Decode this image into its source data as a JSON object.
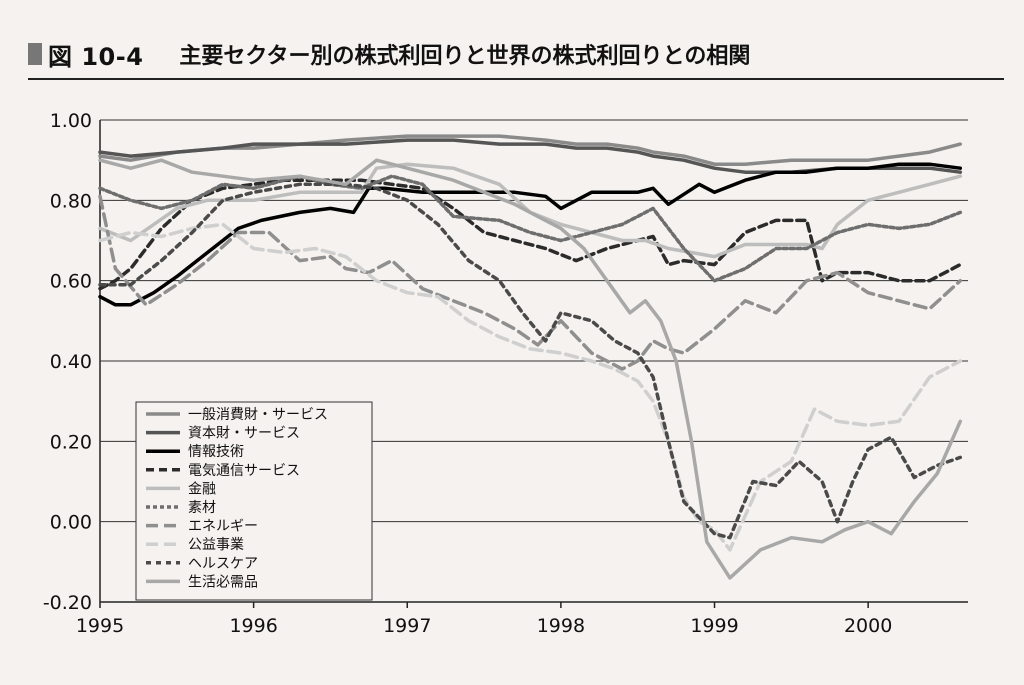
{
  "header": {
    "figure_label": "図 10-4",
    "title": "主要セクター別の株式利回りと世界の株式利回りとの相関"
  },
  "chart_data": {
    "type": "line",
    "title": "主要セクター別の株式利回りと世界の株式利回りとの相関",
    "xlabel": "",
    "ylabel": "",
    "xlim": [
      1995,
      2000.65
    ],
    "ylim": [
      -0.2,
      1.0
    ],
    "x_ticks": [
      "1995",
      "1996",
      "1997",
      "1998",
      "1999",
      "2000"
    ],
    "y_ticks": [
      "-0.20",
      "0.00",
      "0.20",
      "0.40",
      "0.60",
      "0.80",
      "1.00"
    ],
    "grid": "horizontal",
    "legend_position": "lower-left",
    "series": [
      {
        "name": "一般消費財・サービス",
        "color": "#8a8a8a",
        "width": 3.5,
        "dash": "",
        "x": [
          1995,
          1995.2,
          1995.5,
          1995.8,
          1996.0,
          1996.3,
          1996.6,
          1997.0,
          1997.3,
          1997.6,
          1997.9,
          1998.1,
          1998.3,
          1998.5,
          1998.6,
          1998.8,
          1999.0,
          1999.2,
          1999.5,
          1999.8,
          2000.0,
          2000.2,
          2000.4,
          2000.6
        ],
        "y": [
          0.91,
          0.9,
          0.92,
          0.93,
          0.93,
          0.94,
          0.95,
          0.96,
          0.96,
          0.96,
          0.95,
          0.94,
          0.94,
          0.93,
          0.92,
          0.91,
          0.89,
          0.89,
          0.9,
          0.9,
          0.9,
          0.91,
          0.92,
          0.94
        ]
      },
      {
        "name": "資本財・サービス",
        "color": "#555555",
        "width": 3.5,
        "dash": "",
        "x": [
          1995,
          1995.2,
          1995.5,
          1995.8,
          1996.0,
          1996.3,
          1996.6,
          1997.0,
          1997.3,
          1997.6,
          1997.9,
          1998.1,
          1998.3,
          1998.5,
          1998.6,
          1998.8,
          1999.0,
          1999.2,
          1999.5,
          1999.8,
          2000.0,
          2000.2,
          2000.4,
          2000.6
        ],
        "y": [
          0.92,
          0.91,
          0.92,
          0.93,
          0.94,
          0.94,
          0.94,
          0.95,
          0.95,
          0.94,
          0.94,
          0.93,
          0.93,
          0.92,
          0.91,
          0.9,
          0.88,
          0.87,
          0.87,
          0.88,
          0.88,
          0.88,
          0.88,
          0.87
        ]
      },
      {
        "name": "情報技術",
        "color": "#000000",
        "width": 3.5,
        "dash": "",
        "x": [
          1995,
          1995.1,
          1995.2,
          1995.35,
          1995.5,
          1995.7,
          1995.9,
          1996.05,
          1996.3,
          1996.5,
          1996.65,
          1996.75,
          1996.85,
          1997.1,
          1997.4,
          1997.7,
          1997.9,
          1998.0,
          1998.2,
          1998.4,
          1998.5,
          1998.6,
          1998.7,
          1998.9,
          1999.0,
          1999.2,
          1999.4,
          1999.6,
          1999.8,
          2000.0,
          2000.2,
          2000.4,
          2000.6
        ],
        "y": [
          0.56,
          0.54,
          0.54,
          0.57,
          0.61,
          0.67,
          0.73,
          0.75,
          0.77,
          0.78,
          0.77,
          0.83,
          0.83,
          0.82,
          0.82,
          0.82,
          0.81,
          0.78,
          0.82,
          0.82,
          0.82,
          0.83,
          0.79,
          0.84,
          0.82,
          0.85,
          0.87,
          0.87,
          0.88,
          0.88,
          0.89,
          0.89,
          0.88
        ]
      },
      {
        "name": "電気通信サービス",
        "color": "#2b2b2b",
        "width": 3.5,
        "dash": "8,5",
        "x": [
          1995,
          1995.1,
          1995.2,
          1995.4,
          1995.6,
          1995.8,
          1996.0,
          1996.2,
          1996.4,
          1996.6,
          1996.7,
          1996.9,
          1997.1,
          1997.3,
          1997.5,
          1997.7,
          1997.9,
          1998.1,
          1998.3,
          1998.5,
          1998.6,
          1998.7,
          1998.8,
          1999.0,
          1999.2,
          1999.4,
          1999.6,
          1999.7,
          1999.8,
          2000.0,
          2000.2,
          2000.4,
          2000.6
        ],
        "y": [
          0.58,
          0.6,
          0.63,
          0.73,
          0.8,
          0.83,
          0.84,
          0.85,
          0.85,
          0.85,
          0.85,
          0.84,
          0.83,
          0.78,
          0.72,
          0.7,
          0.68,
          0.65,
          0.68,
          0.7,
          0.71,
          0.64,
          0.65,
          0.64,
          0.72,
          0.75,
          0.75,
          0.6,
          0.62,
          0.62,
          0.6,
          0.6,
          0.64
        ]
      },
      {
        "name": "金融",
        "color": "#bdbdbd",
        "width": 3.5,
        "dash": "",
        "x": [
          1995,
          1995.2,
          1995.5,
          1995.7,
          1996.0,
          1996.3,
          1996.5,
          1996.7,
          1996.8,
          1997.0,
          1997.3,
          1997.6,
          1997.8,
          1998.0,
          1998.2,
          1998.4,
          1998.55,
          1998.7,
          1998.85,
          1999.0,
          1999.2,
          1999.4,
          1999.6,
          1999.7,
          1999.8,
          2000.0,
          2000.2,
          2000.4,
          2000.6
        ],
        "y": [
          0.73,
          0.7,
          0.78,
          0.8,
          0.8,
          0.82,
          0.82,
          0.82,
          0.88,
          0.89,
          0.88,
          0.84,
          0.77,
          0.74,
          0.72,
          0.7,
          0.7,
          0.68,
          0.67,
          0.66,
          0.69,
          0.69,
          0.69,
          0.68,
          0.74,
          0.8,
          0.82,
          0.84,
          0.86
        ]
      },
      {
        "name": "素材",
        "color": "#6e6e6e",
        "width": 3.5,
        "dash": "4,3",
        "x": [
          1995,
          1995.2,
          1995.4,
          1995.6,
          1995.8,
          1996.0,
          1996.3,
          1996.5,
          1996.7,
          1996.9,
          1997.1,
          1997.3,
          1997.6,
          1997.8,
          1998.0,
          1998.2,
          1998.4,
          1998.6,
          1998.8,
          1999.0,
          1999.2,
          1999.4,
          1999.6,
          1999.8,
          2000.0,
          2000.2,
          2000.4,
          2000.6
        ],
        "y": [
          0.83,
          0.8,
          0.78,
          0.8,
          0.84,
          0.83,
          0.86,
          0.84,
          0.83,
          0.86,
          0.84,
          0.76,
          0.75,
          0.72,
          0.7,
          0.72,
          0.74,
          0.78,
          0.68,
          0.6,
          0.63,
          0.68,
          0.68,
          0.72,
          0.74,
          0.73,
          0.74,
          0.77
        ]
      },
      {
        "name": "エネルギー",
        "color": "#8f8f8f",
        "width": 3.5,
        "dash": "12,6",
        "x": [
          1995,
          1995.1,
          1995.3,
          1995.5,
          1995.7,
          1995.9,
          1996.1,
          1996.3,
          1996.5,
          1996.6,
          1996.75,
          1996.9,
          1997.1,
          1997.3,
          1997.5,
          1997.7,
          1997.85,
          1998.0,
          1998.2,
          1998.4,
          1998.5,
          1998.6,
          1998.7,
          1998.8,
          1999.0,
          1999.2,
          1999.4,
          1999.6,
          1999.8,
          2000.0,
          2000.2,
          2000.4,
          2000.6
        ],
        "y": [
          0.81,
          0.63,
          0.54,
          0.59,
          0.65,
          0.72,
          0.72,
          0.65,
          0.66,
          0.63,
          0.62,
          0.65,
          0.58,
          0.55,
          0.52,
          0.48,
          0.44,
          0.5,
          0.42,
          0.38,
          0.4,
          0.45,
          0.43,
          0.42,
          0.48,
          0.55,
          0.52,
          0.6,
          0.62,
          0.57,
          0.55,
          0.53,
          0.6
        ]
      },
      {
        "name": "公益事業",
        "color": "#cfcfcf",
        "width": 3.5,
        "dash": "12,6",
        "x": [
          1995,
          1995.2,
          1995.4,
          1995.6,
          1995.8,
          1996.0,
          1996.2,
          1996.4,
          1996.6,
          1996.8,
          1997.0,
          1997.2,
          1997.4,
          1997.6,
          1997.8,
          1998.0,
          1998.2,
          1998.35,
          1998.5,
          1998.6,
          1998.7,
          1998.8,
          1998.9,
          1999.0,
          1999.1,
          1999.3,
          1999.5,
          1999.65,
          1999.8,
          2000.0,
          2000.2,
          2000.4,
          2000.6
        ],
        "y": [
          0.7,
          0.72,
          0.71,
          0.73,
          0.74,
          0.68,
          0.67,
          0.68,
          0.66,
          0.6,
          0.57,
          0.56,
          0.5,
          0.46,
          0.43,
          0.42,
          0.4,
          0.38,
          0.35,
          0.3,
          0.2,
          0.06,
          0.0,
          -0.02,
          -0.07,
          0.1,
          0.15,
          0.28,
          0.25,
          0.24,
          0.25,
          0.36,
          0.4
        ]
      },
      {
        "name": "ヘルスケア",
        "color": "#4a4a4a",
        "width": 3.5,
        "dash": "5,5",
        "x": [
          1995,
          1995.2,
          1995.4,
          1995.6,
          1995.8,
          1996.0,
          1996.3,
          1996.6,
          1996.8,
          1997.0,
          1997.2,
          1997.4,
          1997.6,
          1997.75,
          1997.9,
          1998.0,
          1998.2,
          1998.35,
          1998.5,
          1998.6,
          1998.7,
          1998.8,
          1999.0,
          1999.1,
          1999.25,
          1999.4,
          1999.55,
          1999.7,
          1999.8,
          1999.9,
          2000.0,
          2000.15,
          2000.3,
          2000.45,
          2000.6
        ],
        "y": [
          0.59,
          0.59,
          0.65,
          0.72,
          0.8,
          0.82,
          0.84,
          0.84,
          0.83,
          0.8,
          0.74,
          0.65,
          0.6,
          0.52,
          0.45,
          0.52,
          0.5,
          0.45,
          0.42,
          0.36,
          0.2,
          0.05,
          -0.03,
          -0.04,
          0.1,
          0.09,
          0.15,
          0.1,
          0.0,
          0.1,
          0.18,
          0.21,
          0.11,
          0.14,
          0.16
        ]
      },
      {
        "name": "生活必需品",
        "color": "#a8a8a8",
        "width": 3.5,
        "dash": "",
        "x": [
          1995,
          1995.2,
          1995.4,
          1995.6,
          1995.8,
          1996.0,
          1996.3,
          1996.6,
          1996.8,
          1997.0,
          1997.3,
          1997.5,
          1997.7,
          1997.85,
          1998.0,
          1998.15,
          1998.3,
          1998.45,
          1998.55,
          1998.65,
          1998.75,
          1998.85,
          1998.95,
          1999.1,
          1999.3,
          1999.5,
          1999.7,
          1999.85,
          2000.0,
          2000.15,
          2000.3,
          2000.45,
          2000.6
        ],
        "y": [
          0.9,
          0.88,
          0.9,
          0.87,
          0.86,
          0.85,
          0.86,
          0.84,
          0.9,
          0.88,
          0.85,
          0.82,
          0.79,
          0.76,
          0.73,
          0.68,
          0.6,
          0.52,
          0.55,
          0.5,
          0.4,
          0.2,
          -0.05,
          -0.14,
          -0.07,
          -0.04,
          -0.05,
          -0.02,
          0.0,
          -0.03,
          0.05,
          0.12,
          0.25
        ]
      }
    ]
  }
}
